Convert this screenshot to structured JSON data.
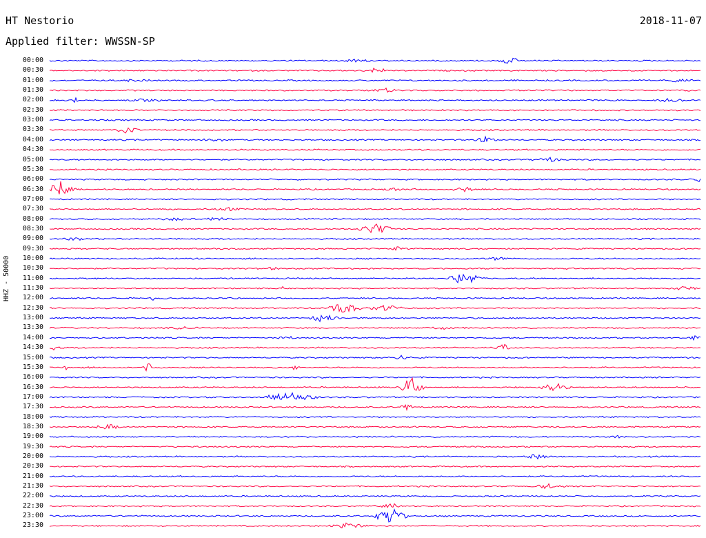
{
  "header": {
    "station": "HT Nestorio",
    "date": "2018-11-07",
    "filter": "Applied filter: WWSSN-SP"
  },
  "axis_label": "HHZ - 50000",
  "colors": {
    "odd_trace": "#0000ff",
    "even_trace": "#ff0040"
  },
  "time_labels": [
    "00:00",
    "00:30",
    "01:00",
    "01:30",
    "02:00",
    "02:30",
    "03:00",
    "03:30",
    "04:00",
    "04:30",
    "05:00",
    "05:30",
    "06:00",
    "06:30",
    "07:00",
    "07:30",
    "08:00",
    "08:30",
    "09:00",
    "09:30",
    "10:00",
    "10:30",
    "11:00",
    "11:30",
    "12:00",
    "12:30",
    "13:00",
    "13:30",
    "14:00",
    "14:30",
    "15:00",
    "15:30",
    "16:00",
    "16:30",
    "17:00",
    "17:30",
    "18:00",
    "18:30",
    "19:00",
    "19:30",
    "20:00",
    "20:30",
    "21:00",
    "21:30",
    "22:00",
    "22:30",
    "23:00",
    "23:30"
  ]
}
